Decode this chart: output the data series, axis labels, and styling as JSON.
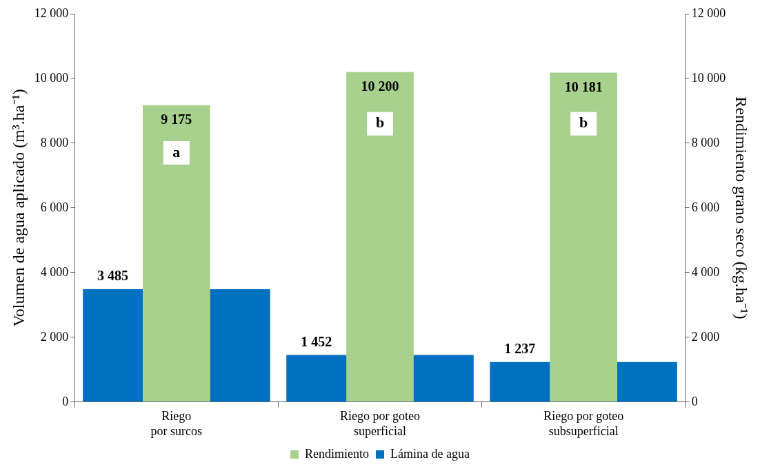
{
  "chart_data": {
    "type": "bar",
    "ylabel": "Volumen de agua aplicado (m³.ha⁻¹)",
    "y2label": "Rendimiento grano seco (kg.ha⁻¹)",
    "categories": [
      "Riego\npor surcos",
      "Riego por goteo\nsuperficial",
      "Riego por goteo\nsubsuperficial"
    ],
    "series": [
      {
        "name": "Lámina de agua",
        "color": "#0070c0",
        "values": [
          3485,
          1452,
          1237
        ],
        "value_labels": [
          "3 485",
          "1 452",
          "1 237"
        ]
      },
      {
        "name": "Rendimiento",
        "color": "#a9d18e",
        "axis": "y2",
        "values": [
          9175,
          10200,
          10181
        ],
        "value_labels": [
          "9 175",
          "10 200",
          "10 181"
        ]
      }
    ],
    "ylim": [
      0,
      12000
    ],
    "yticks": [
      {
        "value": 0,
        "label": "0"
      },
      {
        "value": 2000,
        "label": "2 000"
      },
      {
        "value": 4000,
        "label": "4 000"
      },
      {
        "value": 6000,
        "label": "6 000"
      },
      {
        "value": 8000,
        "label": "8 000"
      },
      {
        "value": 10000,
        "label": "10 000"
      },
      {
        "value": 12000,
        "label": "12 000"
      }
    ],
    "y2lim": [
      0,
      12000
    ],
    "y2ticks": [
      {
        "value": 0,
        "label": "0"
      },
      {
        "value": 2000,
        "label": "2 000"
      },
      {
        "value": 4000,
        "label": "4 000"
      },
      {
        "value": 6000,
        "label": "6 000"
      },
      {
        "value": 8000,
        "label": "8 000"
      },
      {
        "value": 10000,
        "label": "10 000"
      },
      {
        "value": 12000,
        "label": "12 000"
      }
    ],
    "annotations": [
      {
        "text": "a",
        "x": "Riego\npor surcos",
        "y": 7700
      },
      {
        "text": "b",
        "x": "Riego por goteo\nsuperficial",
        "y": 8600
      },
      {
        "text": "b",
        "x": "Riego por goteo\nsubsuperficial",
        "y": 8600
      }
    ],
    "grid": false,
    "legend": "bottom"
  }
}
